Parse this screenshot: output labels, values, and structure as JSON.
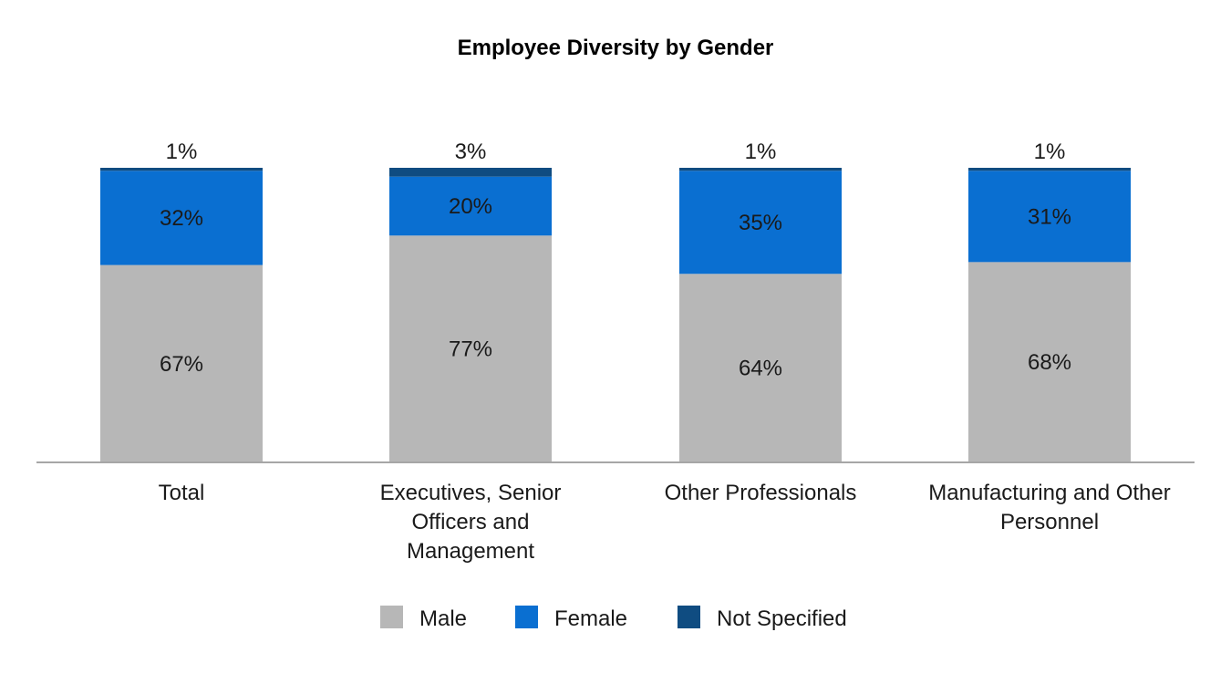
{
  "colors": {
    "male": "#b7b7b7",
    "female": "#0a6fd1",
    "not_specified": "#0f4c81",
    "axis": "#a6a6a6",
    "text": "#1a1a1a"
  },
  "chart_data": {
    "type": "bar",
    "stacked": true,
    "title": "Employee Diversity by Gender",
    "xlabel": "",
    "ylabel": "",
    "ylim": [
      0,
      100
    ],
    "grid": false,
    "legend_position": "bottom-center",
    "categories": [
      [
        "Total"
      ],
      [
        "Executives, Senior",
        "Officers and",
        "Management"
      ],
      [
        "Other Professionals"
      ],
      [
        "Manufacturing and Other",
        "Personnel"
      ]
    ],
    "series": [
      {
        "name": "Male",
        "color_key": "male",
        "values": [
          67,
          77,
          64,
          68
        ],
        "labels": [
          "67%",
          "77%",
          "64%",
          "68%"
        ]
      },
      {
        "name": "Female",
        "color_key": "female",
        "values": [
          32,
          20,
          35,
          31
        ],
        "labels": [
          "32%",
          "20%",
          "35%",
          "31%"
        ]
      },
      {
        "name": "Not Specified",
        "color_key": "not_specified",
        "values": [
          1,
          3,
          1,
          1
        ],
        "labels": [
          "1%",
          "3%",
          "1%",
          "1%"
        ]
      }
    ]
  }
}
